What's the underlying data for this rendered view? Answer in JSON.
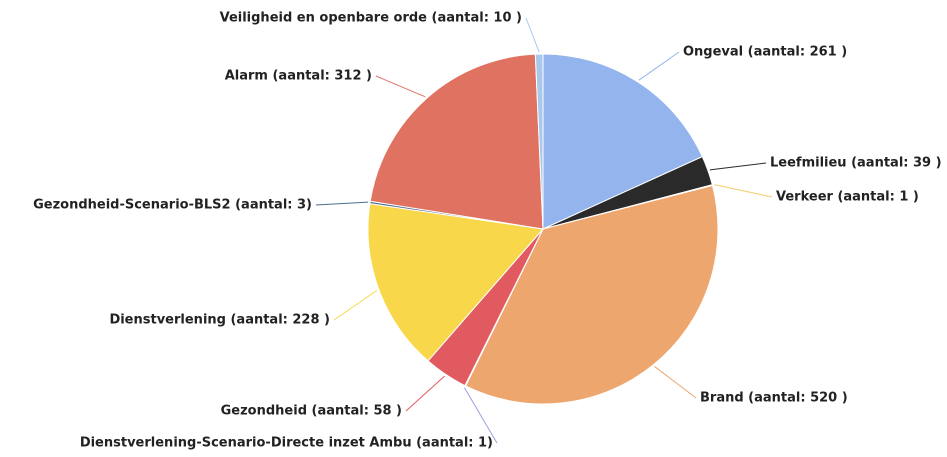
{
  "chart_data": {
    "type": "pie",
    "categories": [
      "Ongeval (aantal: 261 )",
      "Leefmilieu (aantal: 39 )",
      "Verkeer (aantal: 1 )",
      "Brand (aantal: 520 )",
      "Dienstverlening-Scenario-Directe inzet Ambu (aantal: 1)",
      "Gezondheid (aantal: 58 )",
      "Dienstverlening (aantal: 228 )",
      "Gezondheid-Scenario-BLS2 (aantal: 3)",
      "Alarm (aantal: 312 )",
      "Veiligheid en openbare orde (aantal: 10 )"
    ],
    "values": [
      261,
      39,
      1,
      520,
      1,
      58,
      228,
      3,
      312,
      10
    ],
    "colors": [
      "#94b4ee",
      "#2a2a2a",
      "#f1cf72",
      "#eea66f",
      "#9aa0e0",
      "#e05a60",
      "#f8d84a",
      "#4a6a90",
      "#e07262",
      "#a8c8ec"
    ]
  }
}
